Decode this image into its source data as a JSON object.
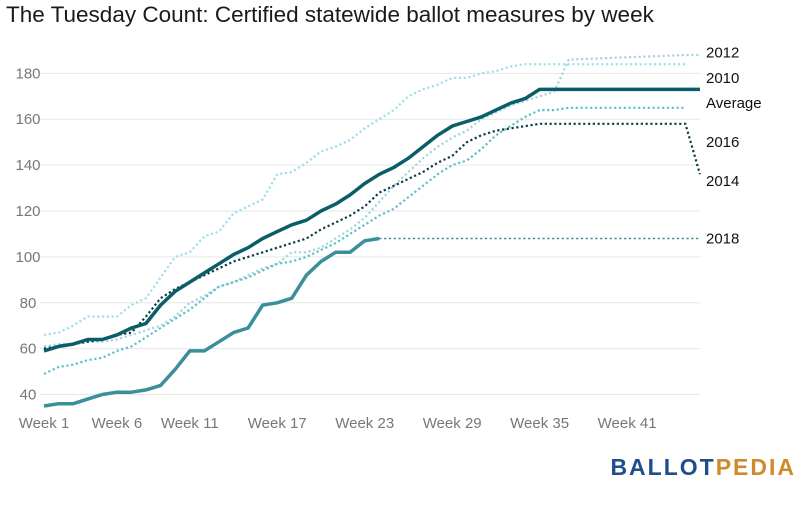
{
  "chart_data": {
    "type": "line",
    "title": "The Tuesday Count: Certified statewide ballot measures by week",
    "xlabel": "",
    "ylabel": "",
    "x": [
      1,
      5,
      10,
      15,
      20,
      23,
      25,
      30,
      35,
      37,
      45
    ],
    "xticks": [
      {
        "week": 1,
        "label": "Week 1"
      },
      {
        "week": 6,
        "label": "Week 6"
      },
      {
        "week": 11,
        "label": "Week 11"
      },
      {
        "week": 17,
        "label": "Week 17"
      },
      {
        "week": 23,
        "label": "Week 23"
      },
      {
        "week": 29,
        "label": "Week 29"
      },
      {
        "week": 35,
        "label": "Week 35"
      },
      {
        "week": 41,
        "label": "Week 41"
      }
    ],
    "yticks": [
      40,
      60,
      80,
      100,
      120,
      140,
      160,
      180
    ],
    "xlim": [
      1,
      46
    ],
    "ylim": [
      35,
      188
    ],
    "grid": true,
    "series": [
      {
        "name": "2012",
        "color": "#9be0ec",
        "style": "dotted",
        "width": 2.2,
        "x": [
          1,
          2,
          3,
          4,
          5,
          6,
          7,
          8,
          9,
          10,
          11,
          12,
          13,
          14,
          15,
          16,
          17,
          18,
          19,
          20,
          21,
          22,
          23,
          24,
          25,
          26,
          27,
          28,
          29,
          30,
          31,
          32,
          33,
          34,
          35,
          36,
          37,
          45
        ],
        "values": [
          66,
          67,
          70,
          74,
          74,
          74,
          79,
          82,
          91,
          100,
          102,
          109,
          111,
          119,
          122,
          125,
          136,
          137,
          141,
          146,
          148,
          151,
          156,
          160,
          164,
          170,
          173,
          175,
          178,
          178,
          180,
          181,
          183,
          184,
          184,
          184,
          184,
          184
        ]
      },
      {
        "name": "2010",
        "color": "#a3d4e0",
        "style": "dotted",
        "width": 2.2,
        "x": [
          1,
          2,
          3,
          4,
          5,
          6,
          7,
          8,
          9,
          10,
          11,
          12,
          13,
          14,
          15,
          16,
          17,
          18,
          19,
          20,
          21,
          22,
          23,
          24,
          25,
          26,
          27,
          28,
          29,
          30,
          31,
          32,
          33,
          34,
          35,
          36,
          37,
          45,
          46
        ],
        "values": [
          61,
          62,
          62,
          63,
          63,
          64,
          66,
          68,
          70,
          74,
          80,
          83,
          87,
          89,
          92,
          95,
          97,
          102,
          102,
          104,
          108,
          112,
          117,
          124,
          131,
          137,
          143,
          148,
          152,
          155,
          160,
          163,
          166,
          168,
          170,
          172,
          186,
          188,
          188
        ]
      },
      {
        "name": "Average",
        "color": "#0b5d68",
        "style": "solid",
        "width": 3.5,
        "x": [
          1,
          2,
          3,
          4,
          5,
          6,
          7,
          8,
          9,
          10,
          11,
          12,
          13,
          14,
          15,
          16,
          17,
          18,
          19,
          20,
          21,
          22,
          23,
          24,
          25,
          26,
          27,
          28,
          29,
          30,
          31,
          32,
          33,
          34,
          35,
          36,
          37,
          46
        ],
        "values": [
          59,
          61,
          62,
          64,
          64,
          66,
          69,
          71,
          79,
          85,
          89,
          93,
          97,
          101,
          104,
          108,
          111,
          114,
          116,
          120,
          123,
          127,
          132,
          136,
          139,
          143,
          148,
          153,
          157,
          159,
          161,
          164,
          167,
          169,
          173,
          173,
          173,
          173
        ]
      },
      {
        "name": "2016",
        "color": "#5cbfcc",
        "style": "dotted",
        "width": 2.2,
        "x": [
          1,
          2,
          3,
          4,
          5,
          6,
          7,
          8,
          9,
          10,
          11,
          12,
          13,
          14,
          15,
          16,
          17,
          18,
          19,
          20,
          21,
          22,
          23,
          24,
          25,
          26,
          27,
          28,
          29,
          30,
          31,
          32,
          33,
          34,
          35,
          36,
          37,
          45
        ],
        "values": [
          49,
          52,
          53,
          55,
          56,
          59,
          61,
          65,
          69,
          73,
          77,
          82,
          87,
          89,
          91,
          94,
          97,
          98,
          100,
          103,
          106,
          110,
          114,
          118,
          121,
          126,
          131,
          136,
          140,
          142,
          147,
          153,
          157,
          161,
          164,
          164,
          165,
          165
        ]
      },
      {
        "name": "2014",
        "color": "#0c3c44",
        "style": "dotted",
        "width": 2.2,
        "x": [
          1,
          2,
          3,
          4,
          5,
          6,
          7,
          8,
          9,
          10,
          11,
          12,
          13,
          14,
          15,
          16,
          17,
          18,
          19,
          20,
          21,
          22,
          23,
          24,
          25,
          26,
          27,
          28,
          29,
          30,
          31,
          32,
          33,
          34,
          35,
          36,
          37,
          45,
          46
        ],
        "values": [
          60,
          61,
          62,
          63,
          64,
          66,
          67,
          74,
          82,
          86,
          89,
          92,
          95,
          98,
          100,
          102,
          104,
          106,
          108,
          112,
          115,
          118,
          122,
          128,
          131,
          134,
          137,
          141,
          144,
          150,
          153,
          155,
          156,
          157,
          158,
          158,
          158,
          158,
          136
        ]
      },
      {
        "name": "2018",
        "color": "#3a8f9a",
        "style": "solid",
        "width": 3.5,
        "x": [
          1,
          2,
          3,
          4,
          5,
          6,
          7,
          8,
          9,
          10,
          11,
          12,
          13,
          14,
          15,
          16,
          17,
          18,
          19,
          20,
          21,
          22,
          23,
          24
        ],
        "values": [
          35,
          36,
          36,
          38,
          40,
          41,
          41,
          42,
          44,
          51,
          59,
          59,
          63,
          67,
          69,
          79,
          80,
          82,
          92,
          98,
          102,
          102,
          107,
          108
        ]
      }
    ],
    "projection": {
      "series": "2018",
      "color": "#3a8f9a",
      "style": "dotted",
      "x": [
        24,
        46
      ],
      "values": [
        108,
        108
      ]
    },
    "end_labels": [
      {
        "text": "2012",
        "y": 189
      },
      {
        "text": "2010",
        "y": 178
      },
      {
        "text": "Average",
        "y": 167
      },
      {
        "text": "2016",
        "y": 150
      },
      {
        "text": "2014",
        "y": 133
      },
      {
        "text": "2018",
        "y": 108
      }
    ]
  },
  "branding": {
    "logo_part_1": "BALLOT",
    "logo_part_2": "PEDIA",
    "color_1": "#1f4e8c",
    "color_2": "#d08a2c"
  }
}
